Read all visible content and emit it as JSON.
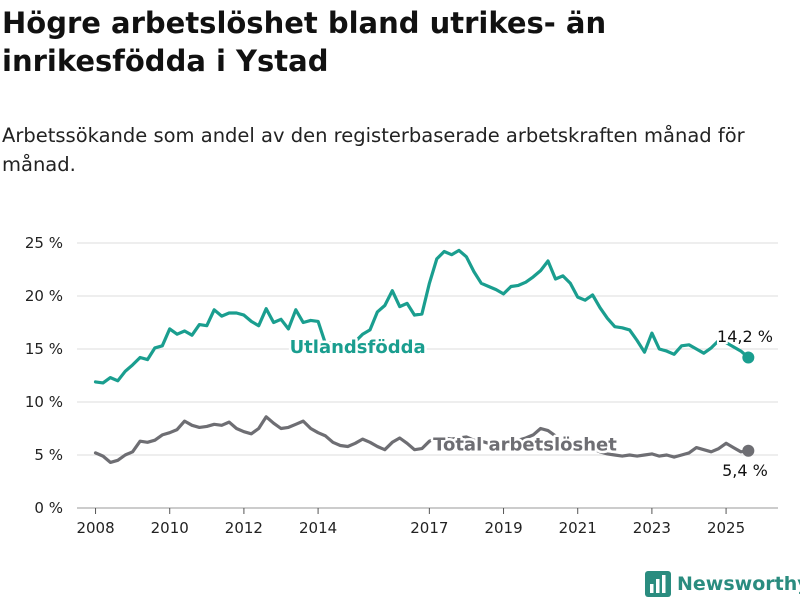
{
  "title": "Högre arbetslöshet bland utrikes- än inrikesfödda i Ystad",
  "subtitle": "Arbetssökande som andel av den registerbaserade arbetskraften månad för månad.",
  "brand": {
    "name": "Newsworthy",
    "color": "#2a8c7f",
    "icon": "bar-chart-logo-icon"
  },
  "chart_data": {
    "type": "line",
    "title": "Högre arbetslöshet bland utrikes- än inrikesfödda i Ystad",
    "subtitle": "Arbetssökande som andel av den registerbaserade arbetskraften månad för månad.",
    "xlabel": "",
    "ylabel": "",
    "xlim": [
      2007.5,
      2026.4
    ],
    "ylim": [
      0,
      25
    ],
    "grid": true,
    "legend": "inline labels",
    "x_ticks": [
      2008,
      2010,
      2012,
      2014,
      2017,
      2019,
      2021,
      2023,
      2025
    ],
    "x_tick_labels": [
      "2008",
      "2010",
      "2012",
      "2014",
      "2017",
      "2019",
      "2021",
      "2023",
      "2025"
    ],
    "y_ticks": [
      0,
      5,
      10,
      15,
      20,
      25
    ],
    "y_tick_labels": [
      "0 %",
      "5 %",
      "10 %",
      "15 %",
      "20 %",
      "25 %"
    ],
    "series": [
      {
        "name": "Utlandsfödda",
        "color": "#1a9e8f",
        "end_label": "14,2 %",
        "points": [
          [
            2008.0,
            11.9
          ],
          [
            2008.2,
            11.8
          ],
          [
            2008.4,
            12.3
          ],
          [
            2008.6,
            12.0
          ],
          [
            2008.8,
            12.9
          ],
          [
            2009.0,
            13.5
          ],
          [
            2009.2,
            14.2
          ],
          [
            2009.4,
            14.0
          ],
          [
            2009.6,
            15.1
          ],
          [
            2009.8,
            15.3
          ],
          [
            2010.0,
            16.9
          ],
          [
            2010.2,
            16.4
          ],
          [
            2010.4,
            16.7
          ],
          [
            2010.6,
            16.3
          ],
          [
            2010.8,
            17.3
          ],
          [
            2011.0,
            17.2
          ],
          [
            2011.2,
            18.7
          ],
          [
            2011.4,
            18.1
          ],
          [
            2011.6,
            18.4
          ],
          [
            2011.8,
            18.4
          ],
          [
            2012.0,
            18.2
          ],
          [
            2012.2,
            17.6
          ],
          [
            2012.4,
            17.2
          ],
          [
            2012.6,
            18.8
          ],
          [
            2012.8,
            17.5
          ],
          [
            2013.0,
            17.8
          ],
          [
            2013.2,
            16.9
          ],
          [
            2013.4,
            18.7
          ],
          [
            2013.6,
            17.5
          ],
          [
            2013.8,
            17.7
          ],
          [
            2014.0,
            17.6
          ],
          [
            2014.2,
            15.5
          ],
          [
            2014.4,
            15.6
          ],
          [
            2014.6,
            15.2
          ],
          [
            2014.8,
            15.0
          ],
          [
            2015.0,
            15.7
          ],
          [
            2015.2,
            16.4
          ],
          [
            2015.4,
            16.8
          ],
          [
            2015.6,
            18.5
          ],
          [
            2015.8,
            19.1
          ],
          [
            2016.0,
            20.5
          ],
          [
            2016.2,
            19.0
          ],
          [
            2016.4,
            19.3
          ],
          [
            2016.6,
            18.2
          ],
          [
            2016.8,
            18.3
          ],
          [
            2017.0,
            21.2
          ],
          [
            2017.2,
            23.5
          ],
          [
            2017.4,
            24.2
          ],
          [
            2017.6,
            23.9
          ],
          [
            2017.8,
            24.3
          ],
          [
            2018.0,
            23.7
          ],
          [
            2018.2,
            22.3
          ],
          [
            2018.4,
            21.2
          ],
          [
            2018.6,
            20.9
          ],
          [
            2018.8,
            20.6
          ],
          [
            2019.0,
            20.2
          ],
          [
            2019.2,
            20.9
          ],
          [
            2019.4,
            21.0
          ],
          [
            2019.6,
            21.3
          ],
          [
            2019.8,
            21.8
          ],
          [
            2020.0,
            22.4
          ],
          [
            2020.2,
            23.3
          ],
          [
            2020.4,
            21.6
          ],
          [
            2020.6,
            21.9
          ],
          [
            2020.8,
            21.2
          ],
          [
            2021.0,
            19.9
          ],
          [
            2021.2,
            19.6
          ],
          [
            2021.4,
            20.1
          ],
          [
            2021.6,
            18.9
          ],
          [
            2021.8,
            17.9
          ],
          [
            2022.0,
            17.1
          ],
          [
            2022.2,
            17.0
          ],
          [
            2022.4,
            16.8
          ],
          [
            2022.6,
            15.8
          ],
          [
            2022.8,
            14.7
          ],
          [
            2023.0,
            16.5
          ],
          [
            2023.2,
            15.0
          ],
          [
            2023.4,
            14.8
          ],
          [
            2023.6,
            14.5
          ],
          [
            2023.8,
            15.3
          ],
          [
            2024.0,
            15.4
          ],
          [
            2024.2,
            15.0
          ],
          [
            2024.4,
            14.6
          ],
          [
            2024.6,
            15.1
          ],
          [
            2024.8,
            15.8
          ],
          [
            2025.0,
            15.6
          ],
          [
            2025.2,
            15.2
          ],
          [
            2025.4,
            14.8
          ],
          [
            2025.6,
            14.2
          ]
        ]
      },
      {
        "name": "Total arbetslöshet",
        "color": "#6e6e73",
        "end_label": "5,4 %",
        "points": [
          [
            2008.0,
            5.2
          ],
          [
            2008.2,
            4.9
          ],
          [
            2008.4,
            4.3
          ],
          [
            2008.6,
            4.5
          ],
          [
            2008.8,
            5.0
          ],
          [
            2009.0,
            5.3
          ],
          [
            2009.2,
            6.3
          ],
          [
            2009.4,
            6.2
          ],
          [
            2009.6,
            6.4
          ],
          [
            2009.8,
            6.9
          ],
          [
            2010.0,
            7.1
          ],
          [
            2010.2,
            7.4
          ],
          [
            2010.4,
            8.2
          ],
          [
            2010.6,
            7.8
          ],
          [
            2010.8,
            7.6
          ],
          [
            2011.0,
            7.7
          ],
          [
            2011.2,
            7.9
          ],
          [
            2011.4,
            7.8
          ],
          [
            2011.6,
            8.1
          ],
          [
            2011.8,
            7.5
          ],
          [
            2012.0,
            7.2
          ],
          [
            2012.2,
            7.0
          ],
          [
            2012.4,
            7.5
          ],
          [
            2012.6,
            8.6
          ],
          [
            2012.8,
            8.0
          ],
          [
            2013.0,
            7.5
          ],
          [
            2013.2,
            7.6
          ],
          [
            2013.4,
            7.9
          ],
          [
            2013.6,
            8.2
          ],
          [
            2013.8,
            7.5
          ],
          [
            2014.0,
            7.1
          ],
          [
            2014.2,
            6.8
          ],
          [
            2014.4,
            6.2
          ],
          [
            2014.6,
            5.9
          ],
          [
            2014.8,
            5.8
          ],
          [
            2015.0,
            6.1
          ],
          [
            2015.2,
            6.5
          ],
          [
            2015.4,
            6.2
          ],
          [
            2015.6,
            5.8
          ],
          [
            2015.8,
            5.5
          ],
          [
            2016.0,
            6.2
          ],
          [
            2016.2,
            6.6
          ],
          [
            2016.4,
            6.1
          ],
          [
            2016.6,
            5.5
          ],
          [
            2016.8,
            5.6
          ],
          [
            2017.0,
            6.3
          ],
          [
            2017.2,
            6.6
          ],
          [
            2017.4,
            6.6
          ],
          [
            2017.6,
            6.5
          ],
          [
            2017.8,
            6.6
          ],
          [
            2018.0,
            6.7
          ],
          [
            2018.2,
            6.4
          ],
          [
            2018.4,
            6.3
          ],
          [
            2018.6,
            6.1
          ],
          [
            2018.8,
            6.0
          ],
          [
            2019.0,
            5.9
          ],
          [
            2019.2,
            6.1
          ],
          [
            2019.4,
            6.4
          ],
          [
            2019.6,
            6.6
          ],
          [
            2019.8,
            6.9
          ],
          [
            2020.0,
            7.5
          ],
          [
            2020.2,
            7.3
          ],
          [
            2020.4,
            6.8
          ],
          [
            2020.6,
            6.5
          ],
          [
            2020.8,
            6.3
          ],
          [
            2021.0,
            6.1
          ],
          [
            2021.2,
            5.8
          ],
          [
            2021.4,
            5.6
          ],
          [
            2021.6,
            5.3
          ],
          [
            2021.8,
            5.1
          ],
          [
            2022.0,
            5.0
          ],
          [
            2022.2,
            4.9
          ],
          [
            2022.4,
            5.0
          ],
          [
            2022.6,
            4.9
          ],
          [
            2022.8,
            5.0
          ],
          [
            2023.0,
            5.1
          ],
          [
            2023.2,
            4.9
          ],
          [
            2023.4,
            5.0
          ],
          [
            2023.6,
            4.8
          ],
          [
            2023.8,
            5.0
          ],
          [
            2024.0,
            5.2
          ],
          [
            2024.2,
            5.7
          ],
          [
            2024.4,
            5.5
          ],
          [
            2024.6,
            5.3
          ],
          [
            2024.8,
            5.6
          ],
          [
            2025.0,
            6.1
          ],
          [
            2025.2,
            5.7
          ],
          [
            2025.4,
            5.3
          ],
          [
            2025.6,
            5.4
          ]
        ]
      }
    ]
  }
}
